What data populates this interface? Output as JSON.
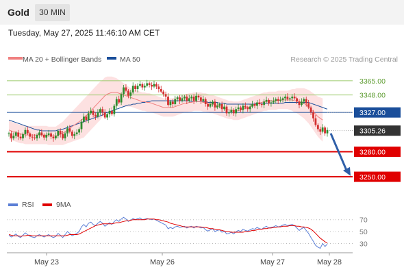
{
  "header": {
    "title": "Gold",
    "timeframe": "30 MIN",
    "datetime": "Tuesday, May 27, 2025 11:46:10 AM CET"
  },
  "legend": {
    "ma20": "MA 20 + Bollinger Bands",
    "ma50": "MA 50",
    "credit": "Research © 2025 Trading Central",
    "rsi": "RSI",
    "rsi_ma": "9MA"
  },
  "colors": {
    "up": "#2e8b2e",
    "down": "#d32f2f",
    "ma20": "#f08080",
    "ma50": "#1a4e9a",
    "band": "#fcd9d9",
    "resistance": "#9bc96b",
    "pivot": "#1a4e9a",
    "support": "#e00000",
    "price_tag": "#333333",
    "rsi": "#5b7fd6",
    "rsi_ma": "#e00000"
  },
  "chart_data": [
    {
      "type": "candlestick",
      "title": "Gold 30 MIN",
      "x_ticks": [
        "May 23",
        "May 26",
        "May 27",
        "May 28"
      ],
      "ylim": [
        3232,
        3378
      ],
      "last_price": 3305.26,
      "levels": [
        {
          "value": 3365.0,
          "label": "3365.00",
          "kind": "resistance"
        },
        {
          "value": 3348.0,
          "label": "3348.00",
          "kind": "resistance"
        },
        {
          "value": 3327.0,
          "label": "3327.00",
          "kind": "pivot"
        },
        {
          "value": 3280.0,
          "label": "3280.00",
          "kind": "support"
        },
        {
          "value": 3250.0,
          "label": "3250.00",
          "kind": "support"
        }
      ],
      "close": [
        3302,
        3296,
        3299,
        3303,
        3298,
        3296,
        3301,
        3306,
        3302,
        3298,
        3297,
        3296,
        3300,
        3303,
        3300,
        3297,
        3300,
        3302,
        3298,
        3296,
        3299,
        3305,
        3301,
        3296,
        3302,
        3308,
        3304,
        3299,
        3301,
        3303,
        3307,
        3316,
        3322,
        3318,
        3326,
        3329,
        3324,
        3322,
        3327,
        3331,
        3327,
        3321,
        3325,
        3329,
        3325,
        3335,
        3343,
        3339,
        3349,
        3357,
        3353,
        3347,
        3351,
        3359,
        3355,
        3359,
        3361,
        3357,
        3359,
        3362,
        3360,
        3358,
        3361,
        3358,
        3355,
        3352,
        3349,
        3346,
        3336,
        3340,
        3337,
        3343,
        3345,
        3341,
        3344,
        3346,
        3341,
        3344,
        3346,
        3341,
        3347,
        3345,
        3341,
        3343,
        3337,
        3334,
        3337,
        3340,
        3333,
        3335,
        3337,
        3331,
        3334,
        3326,
        3327,
        3330,
        3326,
        3331,
        3333,
        3330,
        3335,
        3333,
        3331,
        3334,
        3337,
        3335,
        3339,
        3337,
        3336,
        3340,
        3342,
        3338,
        3339,
        3341,
        3343,
        3341,
        3342,
        3344,
        3346,
        3343,
        3344,
        3346,
        3344,
        3340,
        3336,
        3340,
        3343,
        3338,
        3333,
        3327,
        3320,
        3312,
        3307,
        3304,
        3309,
        3302,
        3306
      ],
      "open": [
        3301,
        3302,
        3296,
        3299,
        3303,
        3298,
        3296,
        3301,
        3306,
        3302,
        3298,
        3297,
        3296,
        3300,
        3303,
        3300,
        3297,
        3300,
        3302,
        3298,
        3296,
        3299,
        3305,
        3301,
        3296,
        3302,
        3308,
        3304,
        3299,
        3301,
        3303,
        3307,
        3316,
        3322,
        3318,
        3326,
        3329,
        3324,
        3322,
        3327,
        3331,
        3327,
        3321,
        3325,
        3329,
        3325,
        3335,
        3343,
        3339,
        3349,
        3357,
        3353,
        3347,
        3351,
        3359,
        3355,
        3359,
        3361,
        3357,
        3359,
        3362,
        3360,
        3358,
        3361,
        3358,
        3355,
        3352,
        3349,
        3346,
        3336,
        3340,
        3337,
        3343,
        3345,
        3341,
        3344,
        3346,
        3341,
        3344,
        3346,
        3341,
        3347,
        3345,
        3341,
        3343,
        3337,
        3334,
        3337,
        3340,
        3333,
        3335,
        3337,
        3331,
        3334,
        3326,
        3327,
        3330,
        3326,
        3331,
        3333,
        3330,
        3335,
        3333,
        3331,
        3334,
        3337,
        3335,
        3339,
        3337,
        3336,
        3340,
        3342,
        3338,
        3339,
        3341,
        3343,
        3341,
        3342,
        3344,
        3346,
        3343,
        3344,
        3346,
        3344,
        3340,
        3336,
        3340,
        3343,
        3338,
        3333,
        3327,
        3320,
        3312,
        3307,
        3304,
        3309,
        3302
      ],
      "ma20": [
        3306,
        3305,
        3304,
        3303,
        3302,
        3301,
        3301,
        3300,
        3300,
        3300,
        3300,
        3300,
        3300,
        3300,
        3300,
        3300,
        3300,
        3299,
        3299,
        3299,
        3299,
        3300,
        3301,
        3302,
        3304,
        3306,
        3308,
        3310,
        3312,
        3314,
        3316,
        3318,
        3320,
        3323,
        3326,
        3329,
        3332,
        3335,
        3338,
        3341,
        3344,
        3347,
        3349,
        3350,
        3351,
        3351,
        3351,
        3350,
        3349,
        3348,
        3347,
        3346,
        3345,
        3344,
        3343,
        3342,
        3341,
        3340,
        3340,
        3339,
        3339,
        3338,
        3337,
        3336,
        3335,
        3334,
        3333,
        3333,
        3333,
        3333,
        3333,
        3334,
        3335,
        3336,
        3337,
        3338,
        3338,
        3339,
        3339,
        3340,
        3340,
        3340,
        3340,
        3339,
        3339,
        3338,
        3337,
        3337,
        3336,
        3335,
        3334,
        3333,
        3332,
        3331,
        3330,
        3330,
        3329,
        3329,
        3329,
        3330,
        3331,
        3332,
        3333,
        3334,
        3335,
        3336,
        3337,
        3338,
        3339,
        3340,
        3340,
        3341,
        3341,
        3341,
        3341,
        3342,
        3342,
        3342,
        3342,
        3342,
        3342,
        3342,
        3341,
        3341,
        3340,
        3339,
        3338,
        3336,
        3334,
        3331,
        3328,
        3325,
        3322,
        3320,
        3318
      ],
      "ma50": [
        3318,
        3317,
        3316,
        3315,
        3314,
        3313,
        3312,
        3311,
        3310,
        3309,
        3308,
        3307,
        3306,
        3306,
        3305,
        3305,
        3305,
        3305,
        3305,
        3305,
        3305,
        3306,
        3306,
        3307,
        3308,
        3309,
        3310,
        3311,
        3312,
        3313,
        3314,
        3315,
        3316,
        3317,
        3318,
        3319,
        3320,
        3321,
        3322,
        3323,
        3324,
        3326,
        3327,
        3328,
        3329,
        3330,
        3331,
        3332,
        3333,
        3334,
        3335,
        3336,
        3336,
        3337,
        3337,
        3338,
        3338,
        3339,
        3339,
        3340,
        3340,
        3341,
        3341,
        3341,
        3341,
        3341,
        3341,
        3341,
        3341,
        3341,
        3341,
        3341,
        3341,
        3341,
        3341,
        3341,
        3341,
        3341,
        3340,
        3340,
        3340,
        3340,
        3340,
        3340,
        3340,
        3339,
        3339,
        3339,
        3339,
        3339,
        3338,
        3338,
        3338,
        3337,
        3337,
        3337,
        3337,
        3337,
        3337,
        3337,
        3337,
        3337,
        3337,
        3337,
        3337,
        3337,
        3338,
        3338,
        3338,
        3338,
        3338,
        3338,
        3338,
        3338,
        3338,
        3338,
        3338,
        3338,
        3339,
        3339,
        3339,
        3339,
        3339,
        3339,
        3339,
        3339,
        3339,
        3339,
        3339,
        3338,
        3337,
        3336,
        3335,
        3334,
        3333,
        3332,
        3331
      ],
      "bb_width": [
        11,
        11,
        11,
        11,
        11,
        11,
        11,
        11,
        11,
        11,
        11,
        11,
        11,
        11,
        11,
        11,
        11,
        11,
        11,
        11,
        11,
        12,
        13,
        14,
        15,
        16,
        17,
        18,
        19,
        20,
        21,
        22,
        23,
        23,
        23,
        23,
        23,
        23,
        23,
        23,
        22,
        22,
        21,
        20,
        19,
        18,
        17,
        16,
        15,
        14,
        13,
        12,
        11,
        11,
        11,
        11,
        11,
        11,
        11,
        11,
        11,
        11,
        11,
        11,
        11,
        11,
        11,
        11,
        11,
        11,
        11,
        11,
        11,
        11,
        11,
        11,
        11,
        11,
        11,
        11,
        11,
        11,
        11,
        11,
        11,
        11,
        11,
        11,
        11,
        11,
        11,
        11,
        11,
        11,
        11,
        11,
        11,
        11,
        11,
        11,
        11,
        11,
        11,
        11,
        11,
        11,
        11,
        11,
        11,
        11,
        11,
        11,
        11,
        11,
        11,
        11,
        11,
        11,
        11,
        11,
        12,
        13,
        14,
        15,
        16,
        17,
        18,
        19,
        20,
        21,
        22,
        23,
        24,
        25,
        26
      ]
    },
    {
      "type": "line",
      "title": "RSI",
      "yticks": [
        30,
        50,
        70
      ],
      "ylim": [
        18,
        80
      ],
      "series": [
        {
          "name": "RSI",
          "values": [
            44,
            41,
            43,
            46,
            42,
            40,
            44,
            48,
            45,
            42,
            41,
            40,
            43,
            45,
            43,
            41,
            43,
            45,
            42,
            40,
            42,
            47,
            44,
            40,
            45,
            50,
            47,
            43,
            45,
            47,
            50,
            58,
            62,
            58,
            64,
            66,
            62,
            60,
            64,
            67,
            64,
            59,
            62,
            65,
            62,
            67,
            70,
            67,
            71,
            74,
            71,
            67,
            69,
            72,
            70,
            72,
            73,
            70,
            71,
            72,
            71,
            70,
            71,
            69,
            67,
            65,
            63,
            61,
            55,
            57,
            55,
            58,
            59,
            57,
            58,
            59,
            56,
            58,
            59,
            56,
            59,
            58,
            56,
            57,
            53,
            51,
            53,
            55,
            50,
            52,
            53,
            49,
            51,
            46,
            47,
            49,
            46,
            50,
            52,
            50,
            54,
            52,
            51,
            53,
            55,
            54,
            57,
            55,
            54,
            57,
            59,
            56,
            57,
            58,
            60,
            58,
            59,
            61,
            62,
            60,
            61,
            62,
            60,
            56,
            52,
            55,
            57,
            52,
            47,
            40,
            34,
            27,
            24,
            22,
            30,
            25,
            29
          ]
        },
        {
          "name": "9MA",
          "values": [
            45,
            44,
            43,
            43,
            43,
            42,
            43,
            43,
            44,
            44,
            43,
            43,
            43,
            43,
            43,
            43,
            43,
            43,
            43,
            43,
            43,
            43,
            43,
            43,
            43,
            44,
            45,
            45,
            45,
            45,
            46,
            48,
            50,
            52,
            54,
            56,
            58,
            60,
            61,
            62,
            63,
            63,
            63,
            63,
            63,
            64,
            65,
            65,
            66,
            67,
            68,
            68,
            69,
            70,
            70,
            70,
            70,
            70,
            70,
            71,
            71,
            71,
            71,
            70,
            70,
            69,
            68,
            67,
            66,
            64,
            63,
            62,
            61,
            60,
            59,
            58,
            58,
            58,
            58,
            58,
            58,
            58,
            58,
            57,
            57,
            56,
            55,
            55,
            54,
            53,
            53,
            52,
            51,
            50,
            50,
            49,
            49,
            49,
            49,
            49,
            49,
            50,
            50,
            51,
            52,
            52,
            53,
            54,
            54,
            55,
            55,
            56,
            56,
            57,
            57,
            58,
            58,
            59,
            59,
            59,
            60,
            60,
            60,
            59,
            59,
            58,
            58,
            57,
            56,
            54,
            51,
            47,
            43,
            39,
            36,
            33,
            31
          ]
        }
      ]
    }
  ]
}
